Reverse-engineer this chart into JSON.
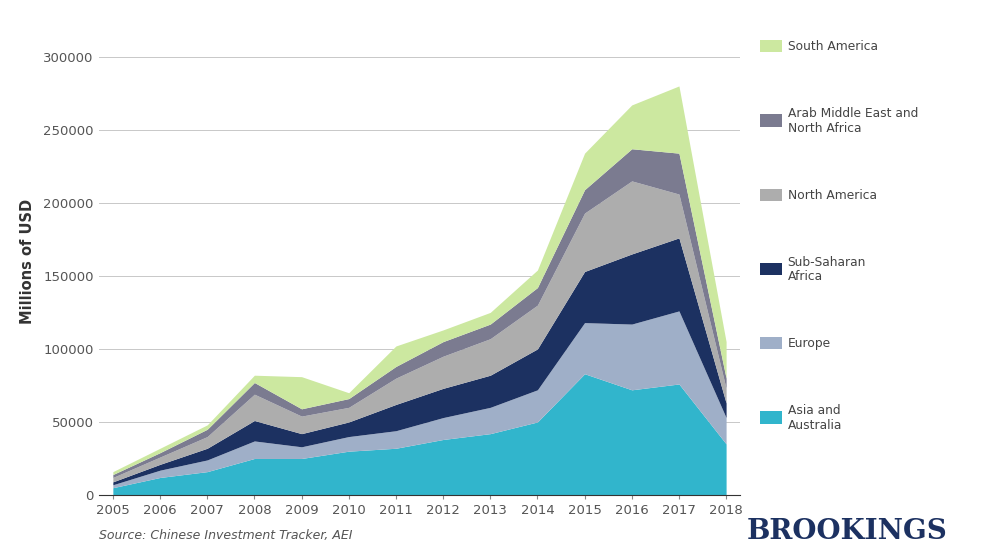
{
  "years": [
    2005,
    2006,
    2007,
    2008,
    2009,
    2010,
    2011,
    2012,
    2013,
    2014,
    2015,
    2016,
    2017,
    2018
  ],
  "series": {
    "Asia and Australia": [
      5000,
      12000,
      16000,
      25000,
      25000,
      30000,
      32000,
      38000,
      42000,
      50000,
      83000,
      72000,
      76000,
      35000
    ],
    "Europe": [
      2000,
      5000,
      8000,
      12000,
      8000,
      10000,
      12000,
      15000,
      18000,
      22000,
      35000,
      45000,
      50000,
      18000
    ],
    "Sub-Saharan Africa": [
      2000,
      4000,
      8000,
      14000,
      9000,
      10000,
      18000,
      20000,
      22000,
      28000,
      35000,
      48000,
      50000,
      10000
    ],
    "North America": [
      3000,
      5000,
      8000,
      18000,
      12000,
      10000,
      18000,
      22000,
      25000,
      30000,
      40000,
      50000,
      30000,
      10000
    ],
    "Arab Middle East and North Africa": [
      2000,
      3000,
      5000,
      8000,
      5000,
      6000,
      8000,
      10000,
      10000,
      12000,
      16000,
      22000,
      28000,
      7000
    ],
    "South America": [
      2000,
      3000,
      3000,
      5000,
      22000,
      4000,
      14000,
      8000,
      8000,
      12000,
      25000,
      30000,
      46000,
      25000
    ]
  },
  "colors": {
    "Asia and Australia": "#31b5cc",
    "Europe": "#9fafc8",
    "Sub-Saharan Africa": "#1c3161",
    "North America": "#adadad",
    "Arab Middle East and North Africa": "#7b7b90",
    "South America": "#cce8a0"
  },
  "legend_colors": {
    "South America": "#cce8a0",
    "Arab Middle East and North Africa": "#7b7b90",
    "North America": "#adadad",
    "Sub-Saharan Africa": "#1c3161",
    "Europe": "#9fafc8",
    "Asia and Australia": "#31b5cc"
  },
  "ylabel": "Millions of USD",
  "ylim": [
    0,
    320000
  ],
  "yticks": [
    0,
    50000,
    100000,
    150000,
    200000,
    250000,
    300000
  ],
  "source_text": "Source: Chinese Investment Tracker, AEI",
  "brookings_text": "BROOKINGS",
  "background_color": "#ffffff",
  "grid_color": "#c8c8c8"
}
